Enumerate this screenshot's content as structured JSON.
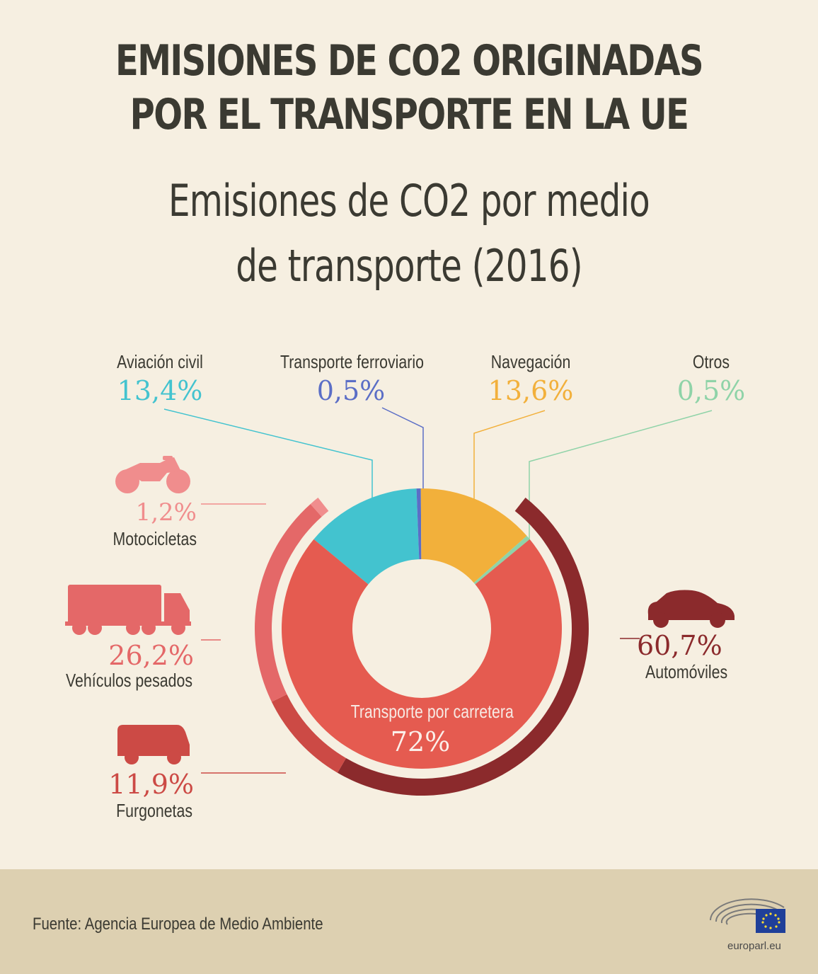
{
  "title_line1": "EMISIONES DE CO2 ORIGINADAS",
  "title_line2": "POR EL TRANSPORTE EN LA UE",
  "subtitle_line1": "Emisiones de CO2 por medio",
  "subtitle_line2": "de transporte (2016)",
  "source": "Fuente: Agencia Europea de Medio Ambiente",
  "logo_text": "europarl.eu",
  "colors": {
    "background": "#f6efe1",
    "footer": "#ddd0b1",
    "aviation": "#43c3cf",
    "rail": "#5b6ec6",
    "navigation": "#f2b03b",
    "others": "#8fd3a8",
    "road": "#e55b50",
    "motorcycles": "#f08d8d",
    "heavy": "#e46868",
    "vans": "#cc4a45",
    "cars": "#8b2a2c"
  },
  "chart_data": [
    {
      "type": "pie",
      "title": "Emisiones de CO2 por medio de transporte (2016)",
      "unit": "%",
      "slices": [
        {
          "label": "Aviación civil",
          "value": 13.4,
          "display": "13,4%",
          "color": "#43c3cf"
        },
        {
          "label": "Transporte ferroviario",
          "value": 0.5,
          "display": "0,5%",
          "color": "#5b6ec6"
        },
        {
          "label": "Navegación",
          "value": 13.6,
          "display": "13,6%",
          "color": "#f2b03b"
        },
        {
          "label": "Otros",
          "value": 0.5,
          "display": "0,5%",
          "color": "#8fd3a8"
        },
        {
          "label": "Transporte por carretera",
          "value": 72,
          "display": "72%",
          "color": "#e55b50"
        }
      ]
    },
    {
      "type": "pie",
      "title": "Transporte por carretera",
      "unit": "%",
      "slices": [
        {
          "label": "Automóviles",
          "value": 60.7,
          "display": "60,7%",
          "color": "#8b2a2c",
          "icon": "car-icon"
        },
        {
          "label": "Furgonetas",
          "value": 11.9,
          "display": "11,9%",
          "color": "#cc4a45",
          "icon": "van-icon"
        },
        {
          "label": "Vehículos pesados",
          "value": 26.2,
          "display": "26,2%",
          "color": "#e46868",
          "icon": "truck-icon"
        },
        {
          "label": "Motocicletas",
          "value": 1.2,
          "display": "1,2%",
          "color": "#f08d8d",
          "icon": "motorcycle-icon"
        }
      ]
    }
  ]
}
